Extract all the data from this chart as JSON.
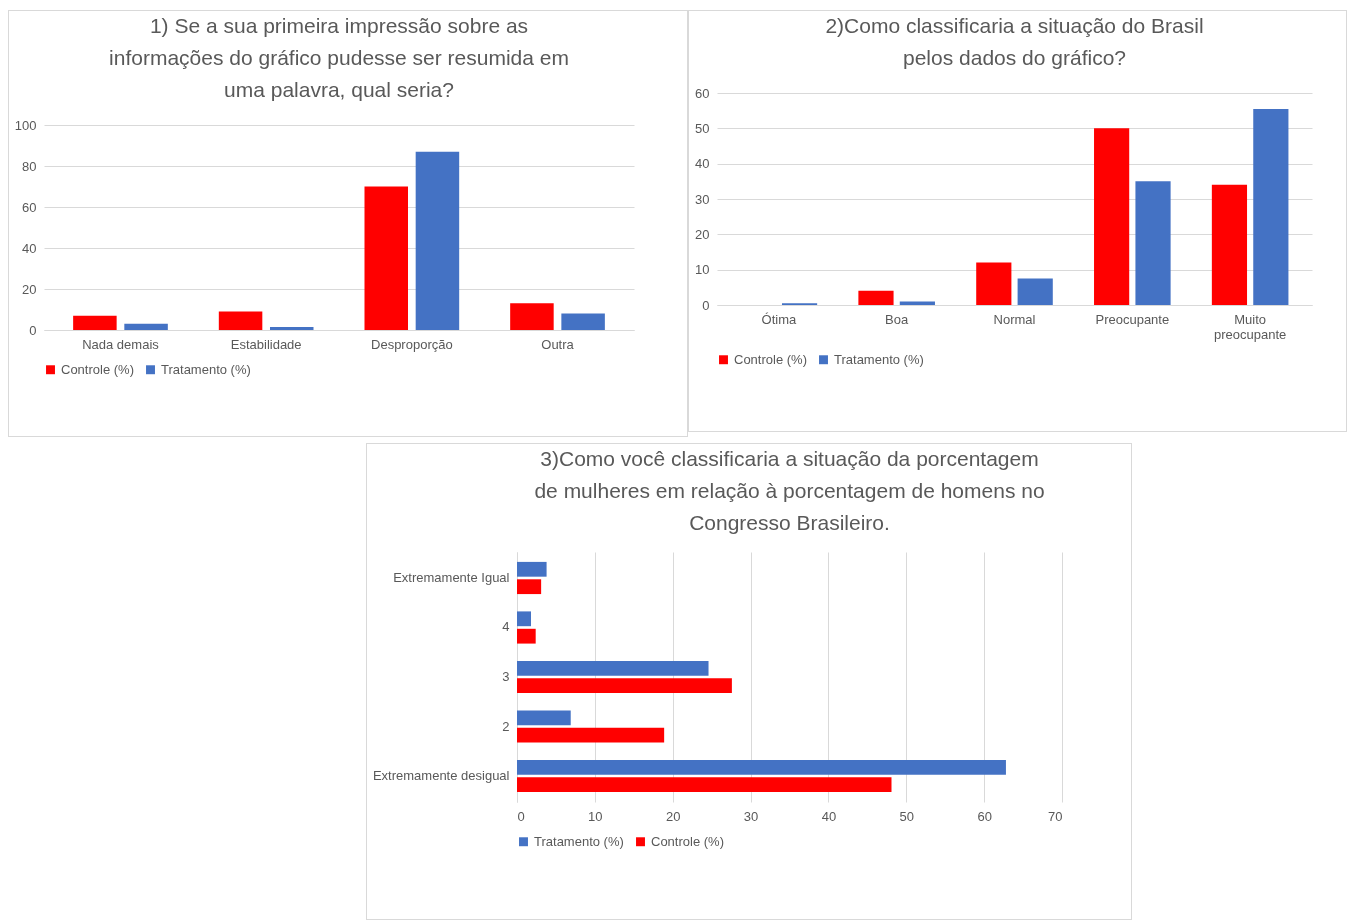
{
  "chart_data": [
    {
      "type": "bar",
      "title": "1) Se a sua primeira impressão sobre as informações do gráfico pudesse ser resumida em uma palavra, qual seria?",
      "categories": [
        "Nada demais",
        "Estabilidade",
        "Desproporção",
        "Outra"
      ],
      "series": [
        {
          "name": "Controle (%)",
          "color": "#ff0000",
          "values": [
            7,
            9,
            70,
            13
          ]
        },
        {
          "name": "Tratamento (%)",
          "color": "#4472c4",
          "values": [
            3,
            1.5,
            87,
            8
          ]
        }
      ],
      "ylim": [
        0,
        100
      ],
      "yticks": [
        0,
        20,
        40,
        60,
        80,
        100
      ],
      "grid": "y",
      "legend": "bottom"
    },
    {
      "type": "bar",
      "title": "2)Como classificaria a situação do Brasil pelos dados do gráfico?",
      "categories": [
        "Ótima",
        "Boa",
        "Normal",
        "Preocupante",
        "Muito preocupante"
      ],
      "series": [
        {
          "name": "Controle (%)",
          "color": "#ff0000",
          "values": [
            0,
            4,
            12,
            50,
            34
          ]
        },
        {
          "name": "Tratamento (%)",
          "color": "#4472c4",
          "values": [
            0.5,
            1,
            7.5,
            35,
            55.5
          ]
        }
      ],
      "ylim": [
        0,
        60
      ],
      "yticks": [
        0,
        10,
        20,
        30,
        40,
        50,
        60
      ],
      "grid": "y",
      "legend": "bottom"
    },
    {
      "type": "bar",
      "orientation": "horizontal",
      "title": "3)Como você classificaria a situação da porcentagem de mulheres em relação à porcentagem de homens no Congresso Brasileiro.",
      "categories": [
        "Extremamente Igual",
        "4",
        "3",
        "2",
        "Extremamente desigual"
      ],
      "series": [
        {
          "name": "Tratamento (%)",
          "color": "#4472c4",
          "values": [
            3.8,
            1.8,
            24.6,
            6.9,
            62.8
          ]
        },
        {
          "name": "Controle (%)",
          "color": "#ff0000",
          "values": [
            3.1,
            2.4,
            27.6,
            18.9,
            48.1
          ]
        }
      ],
      "xlim": [
        0,
        70
      ],
      "xticks": [
        0,
        10,
        20,
        30,
        40,
        50,
        60,
        70
      ],
      "grid": "x",
      "legend": "bottom"
    }
  ]
}
